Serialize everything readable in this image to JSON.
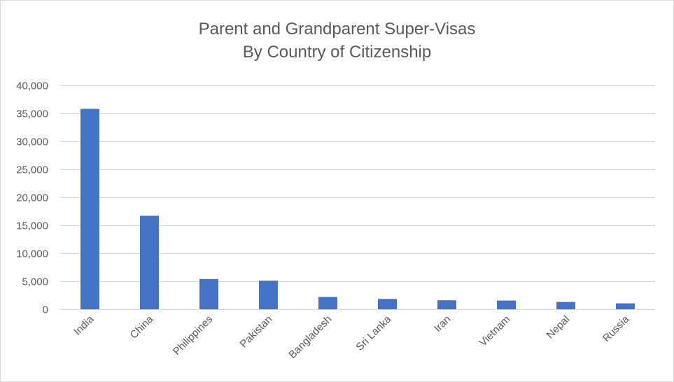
{
  "chart_data": {
    "type": "bar",
    "title": "Parent and Grandparent Super-Visas",
    "subtitle": "By Country of Citizenship",
    "categories": [
      "India",
      "China",
      "Philippines",
      "Pakistan",
      "Bangladesh",
      "Sri Lanka",
      "Iran",
      "Vietnam",
      "Nepal",
      "Russia"
    ],
    "values": [
      35800,
      16700,
      5400,
      5100,
      2200,
      1850,
      1600,
      1550,
      1300,
      1050
    ],
    "ylim": [
      0,
      40000
    ],
    "yticks": [
      0,
      5000,
      10000,
      15000,
      20000,
      25000,
      30000,
      35000,
      40000
    ],
    "ytick_labels": [
      "0",
      "5,000",
      "10,000",
      "15,000",
      "20,000",
      "25,000",
      "30,000",
      "35,000",
      "40,000"
    ],
    "grid": true,
    "legend": "none",
    "bar_color": "#4472c4"
  }
}
